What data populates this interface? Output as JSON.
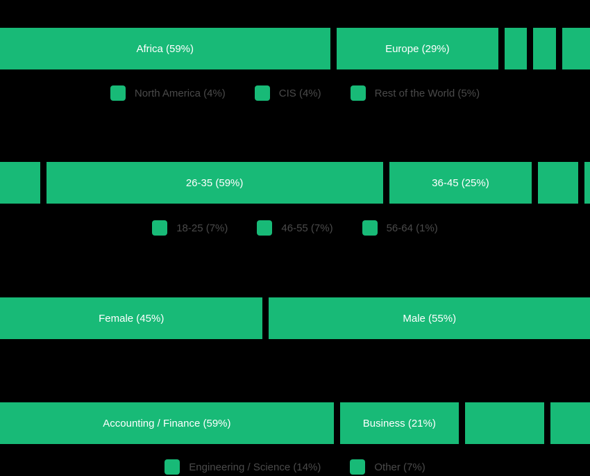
{
  "colors": {
    "background": "#000000",
    "accent": "#18ba77",
    "bar_label": "#ffffff",
    "legend_label": "#4a4a4a"
  },
  "chart_data": [
    {
      "id": "region",
      "type": "bar",
      "stacked": true,
      "orientation": "horizontal",
      "unit": "percent",
      "categories": [
        "Africa",
        "Europe",
        "North America",
        "CIS",
        "Rest of the World"
      ],
      "values": [
        59,
        29,
        4,
        4,
        5
      ],
      "bar_labels": [
        "Africa (59%)",
        "Europe (29%)",
        "",
        "",
        ""
      ],
      "legend": [
        "North America (4%)",
        "CIS (4%)",
        "Rest of the World (5%)"
      ],
      "legend_position": "bottom-center"
    },
    {
      "id": "age",
      "type": "bar",
      "stacked": true,
      "orientation": "horizontal",
      "unit": "percent",
      "categories": [
        "18-25",
        "26-35",
        "36-45",
        "46-55",
        "56-64"
      ],
      "values": [
        7,
        59,
        25,
        7,
        1
      ],
      "bar_labels": [
        "",
        "26-35 (59%)",
        "36-45 (25%)",
        "",
        ""
      ],
      "legend": [
        "18-25 (7%)",
        "46-55 (7%)",
        "56-64 (1%)"
      ],
      "legend_position": "bottom-center"
    },
    {
      "id": "gender",
      "type": "bar",
      "stacked": true,
      "orientation": "horizontal",
      "unit": "percent",
      "categories": [
        "Female",
        "Male"
      ],
      "values": [
        45,
        55
      ],
      "bar_labels": [
        "Female (45%)",
        "Male (55%)"
      ],
      "legend": [],
      "legend_position": "none"
    },
    {
      "id": "field",
      "type": "bar",
      "stacked": true,
      "orientation": "horizontal",
      "unit": "percent",
      "categories": [
        "Accounting / Finance",
        "Business",
        "Engineering / Science",
        "Other"
      ],
      "values": [
        59,
        21,
        14,
        7
      ],
      "bar_labels": [
        "Accounting / Finance (59%)",
        "Business (21%)",
        "",
        ""
      ],
      "legend": [
        "Engineering / Science (14%)",
        "Other (7%)"
      ],
      "legend_position": "bottom-center"
    }
  ]
}
